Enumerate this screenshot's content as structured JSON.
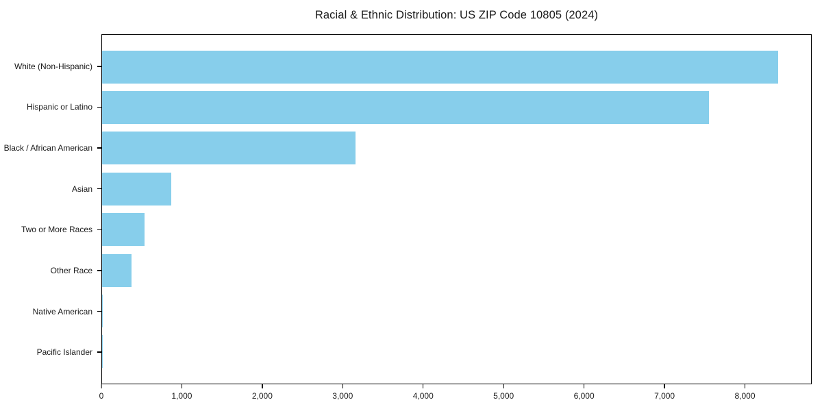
{
  "figure": {
    "background": "#ffffff",
    "text_color": "#1a1a1a",
    "axis_color": "#000000"
  },
  "chart_data": {
    "type": "bar",
    "orientation": "horizontal",
    "title": "Racial & Ethnic Distribution: US ZIP Code 10805 (2024)",
    "categories": [
      "White (Non-Hispanic)",
      "Hispanic or Latino",
      "Black / African American",
      "Asian",
      "Two or More Races",
      "Other Race",
      "Native American",
      "Pacific Islander"
    ],
    "values": [
      8420,
      7560,
      3160,
      860,
      530,
      365,
      12,
      5
    ],
    "bar_color": "#87CEEB",
    "xlabel": "",
    "ylabel": "",
    "xlim": [
      0,
      8830
    ],
    "x_ticks": [
      0,
      1000,
      2000,
      3000,
      4000,
      5000,
      6000,
      7000,
      8000
    ],
    "x_tick_labels": [
      "0",
      "1,000",
      "2,000",
      "3,000",
      "4,000",
      "5,000",
      "6,000",
      "7,000",
      "8,000"
    ],
    "grid": false,
    "legend_position": "none",
    "bar_thickness_fraction": 0.8
  }
}
